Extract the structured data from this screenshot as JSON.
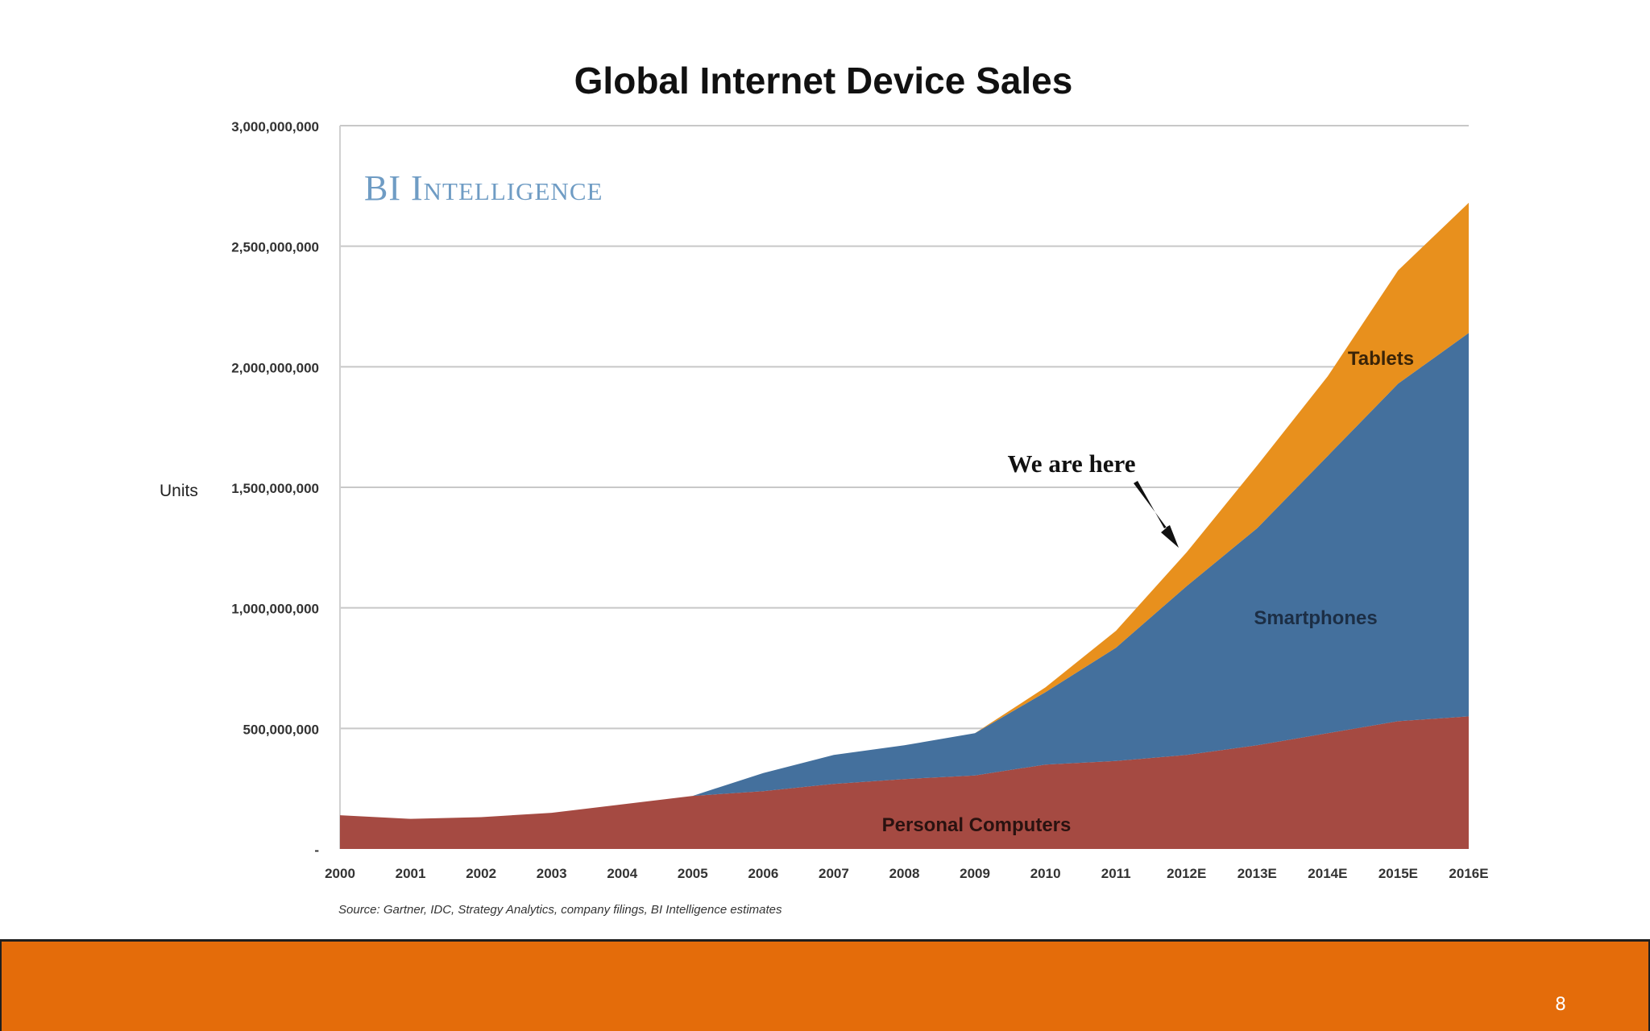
{
  "chart_data": {
    "type": "area",
    "stacked": true,
    "title": "Global Internet Device Sales",
    "watermark": "BI Intelligence",
    "ylabel": "Units",
    "xlabel": "",
    "ylim": [
      0,
      3000000000
    ],
    "y_ticks": [
      0,
      500000000,
      1000000000,
      1500000000,
      2000000000,
      2500000000,
      3000000000
    ],
    "y_tick_labels": [
      "-",
      "500,000,000",
      "1,000,000,000",
      "1,500,000,000",
      "2,000,000,000",
      "2,500,000,000",
      "3,000,000,000"
    ],
    "categories": [
      "2000",
      "2001",
      "2002",
      "2003",
      "2004",
      "2005",
      "2006",
      "2007",
      "2008",
      "2009",
      "2010",
      "2011",
      "2012E",
      "2013E",
      "2014E",
      "2015E",
      "2016E"
    ],
    "series": [
      {
        "name": "Personal Computers",
        "color": "#a54a42",
        "values": [
          140000000,
          125000000,
          132000000,
          150000000,
          185000000,
          220000000,
          240000000,
          270000000,
          290000000,
          305000000,
          350000000,
          365000000,
          390000000,
          430000000,
          480000000,
          530000000,
          550000000
        ]
      },
      {
        "name": "Smartphones",
        "color": "#44709d",
        "values": [
          0,
          0,
          0,
          0,
          0,
          0,
          75000000,
          120000000,
          140000000,
          175000000,
          300000000,
          470000000,
          700000000,
          900000000,
          1150000000,
          1400000000,
          1590000000
        ]
      },
      {
        "name": "Tablets",
        "color": "#e8901d",
        "values": [
          0,
          0,
          0,
          0,
          0,
          0,
          0,
          0,
          0,
          0,
          20000000,
          70000000,
          140000000,
          260000000,
          330000000,
          470000000,
          540000000
        ]
      }
    ],
    "annotation": "We are here",
    "source": "Source: Gartner, IDC, Strategy Analytics, company filings, BI Intelligence estimates",
    "grid": true,
    "legend": "labels-on-areas"
  },
  "slide": {
    "page_number": "8",
    "footer_color": "#e46c0a"
  }
}
